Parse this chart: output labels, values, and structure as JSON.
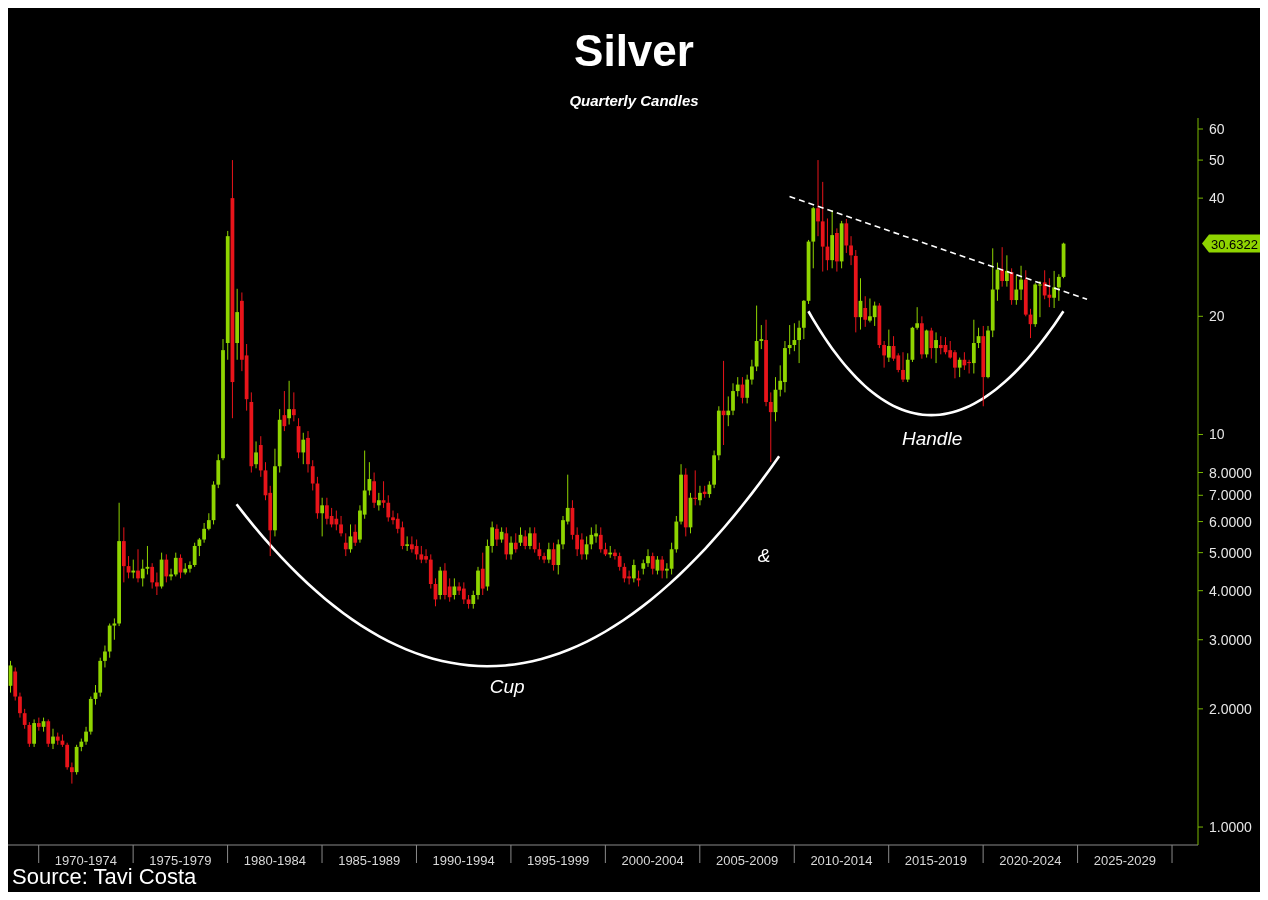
{
  "chart_data": {
    "type": "candlestick",
    "title": "Silver",
    "subtitle": "Quarterly Candles",
    "categories": [
      null,
      null,
      null,
      null,
      null,
      null,
      null,
      null,
      null,
      null,
      null,
      null,
      null,
      null,
      null,
      null,
      "1970-1974",
      null,
      null,
      null,
      null,
      null,
      null,
      null,
      null,
      null,
      null,
      null,
      null,
      null,
      null,
      null,
      null,
      null,
      null,
      null,
      "1975-1979",
      null,
      null,
      null,
      null,
      null,
      null,
      null,
      null,
      null,
      null,
      null,
      null,
      null,
      null,
      null,
      null,
      null,
      null,
      null,
      "1980-1984",
      null,
      null,
      null,
      null,
      null,
      null,
      null,
      null,
      null,
      null,
      null,
      null,
      null,
      null,
      null,
      null,
      null,
      null,
      null,
      "1985-1989",
      null,
      null,
      null,
      null,
      null,
      null,
      null,
      null,
      null,
      null,
      null,
      null,
      null,
      null,
      null,
      null,
      null,
      null,
      null,
      "1990-1994",
      null,
      null,
      null,
      null,
      null,
      null,
      null,
      null,
      null,
      null,
      null,
      null,
      null,
      null,
      null,
      null,
      null,
      null,
      null,
      "1995-1999",
      null,
      null,
      null,
      null,
      null,
      null,
      null,
      null,
      null,
      null,
      null,
      null,
      null,
      null,
      null,
      null,
      null,
      null,
      null,
      "2000-2004",
      null,
      null,
      null,
      null,
      null,
      null,
      null,
      null,
      null,
      null,
      null,
      null,
      null,
      null,
      null,
      null,
      null,
      null,
      null,
      "2005-2009",
      null,
      null,
      null,
      null,
      null,
      null,
      null,
      null,
      null,
      null,
      null,
      null,
      null,
      null,
      null,
      null,
      null,
      null,
      null,
      "2010-2014",
      null,
      null,
      null,
      null,
      null,
      null,
      null,
      null,
      null,
      null,
      null,
      null,
      null,
      null,
      null,
      null,
      null,
      null,
      null,
      "2015-2019",
      null,
      null,
      null,
      null,
      null,
      null,
      null,
      null,
      null,
      null,
      null,
      null,
      null,
      null,
      null,
      null,
      null,
      null,
      null,
      "2020-2024",
      null,
      null,
      null,
      null,
      null,
      null,
      null,
      null,
      null,
      null,
      null,
      null,
      null,
      null,
      null,
      null,
      null,
      null,
      null,
      "2025-2029",
      null,
      null,
      null,
      null,
      null,
      null,
      null,
      null,
      null,
      null,
      null,
      null,
      null,
      null,
      null
    ],
    "ohlc": [
      [
        2.29,
        2.65,
        2.2,
        2.58
      ],
      [
        2.49,
        2.55,
        2.1,
        2.15
      ],
      [
        2.15,
        2.2,
        1.9,
        1.95
      ],
      [
        1.95,
        2.0,
        1.78,
        1.82
      ],
      [
        1.82,
        1.85,
        1.6,
        1.63
      ],
      [
        1.63,
        1.88,
        1.6,
        1.84
      ],
      [
        1.84,
        1.9,
        1.76,
        1.8
      ],
      [
        1.8,
        1.9,
        1.75,
        1.86
      ],
      [
        1.86,
        1.88,
        1.6,
        1.63
      ],
      [
        1.63,
        1.78,
        1.58,
        1.7
      ],
      [
        1.7,
        1.74,
        1.62,
        1.66
      ],
      [
        1.66,
        1.72,
        1.6,
        1.62
      ],
      [
        1.62,
        1.64,
        1.4,
        1.42
      ],
      [
        1.42,
        1.46,
        1.29,
        1.38
      ],
      [
        1.38,
        1.62,
        1.36,
        1.6
      ],
      [
        1.6,
        1.68,
        1.56,
        1.65
      ],
      [
        1.65,
        1.8,
        1.62,
        1.75
      ],
      [
        1.75,
        2.15,
        1.72,
        2.12
      ],
      [
        2.12,
        2.3,
        2.05,
        2.2
      ],
      [
        2.2,
        2.7,
        2.15,
        2.65
      ],
      [
        2.65,
        2.9,
        2.55,
        2.8
      ],
      [
        2.8,
        3.3,
        2.7,
        3.26
      ],
      [
        3.26,
        3.4,
        3.0,
        3.3
      ],
      [
        3.3,
        6.7,
        3.25,
        5.35
      ],
      [
        5.35,
        5.8,
        4.2,
        4.62
      ],
      [
        4.62,
        4.9,
        4.3,
        4.45
      ],
      [
        4.45,
        4.8,
        4.3,
        4.5
      ],
      [
        4.5,
        5.1,
        4.2,
        4.3
      ],
      [
        4.3,
        4.8,
        4.1,
        4.55
      ],
      [
        4.55,
        5.2,
        4.4,
        4.6
      ],
      [
        4.6,
        4.7,
        4.05,
        4.2
      ],
      [
        4.2,
        4.45,
        3.9,
        4.1
      ],
      [
        4.1,
        5.0,
        4.05,
        4.8
      ],
      [
        4.8,
        4.95,
        4.2,
        4.35
      ],
      [
        4.35,
        4.55,
        4.25,
        4.4
      ],
      [
        4.4,
        5.0,
        4.35,
        4.85
      ],
      [
        4.85,
        4.95,
        4.3,
        4.45
      ],
      [
        4.45,
        4.7,
        4.4,
        4.55
      ],
      [
        4.55,
        4.75,
        4.45,
        4.65
      ],
      [
        4.65,
        5.3,
        4.6,
        5.2
      ],
      [
        5.2,
        5.45,
        4.9,
        5.4
      ],
      [
        5.4,
        5.95,
        5.3,
        5.75
      ],
      [
        5.75,
        6.3,
        5.7,
        6.05
      ],
      [
        6.05,
        7.6,
        5.9,
        7.45
      ],
      [
        7.45,
        8.9,
        7.3,
        8.6
      ],
      [
        8.7,
        17.5,
        8.6,
        16.4
      ],
      [
        17.1,
        33,
        15.5,
        32
      ],
      [
        40,
        50,
        11.0,
        13.6
      ],
      [
        17.1,
        23.5,
        15.5,
        20.5
      ],
      [
        21.9,
        23.0,
        14.5,
        15.5
      ],
      [
        15.9,
        17.0,
        11.5,
        12.3
      ],
      [
        12.1,
        12.8,
        8.0,
        8.3
      ],
      [
        8.4,
        9.6,
        8.2,
        9.0
      ],
      [
        9.4,
        9.9,
        7.8,
        8.1
      ],
      [
        8.1,
        8.5,
        6.8,
        7.0
      ],
      [
        7.1,
        7.4,
        4.9,
        5.7
      ],
      [
        5.7,
        9.2,
        5.5,
        8.3
      ],
      [
        8.3,
        11.6,
        8.0,
        10.9
      ],
      [
        11.2,
        12.9,
        10.2,
        10.5
      ],
      [
        11.0,
        13.7,
        10.6,
        11.6
      ],
      [
        11.6,
        12.8,
        10.8,
        11.2
      ],
      [
        10.5,
        11.0,
        8.7,
        9.0
      ],
      [
        9.0,
        10.1,
        8.4,
        9.7
      ],
      [
        9.8,
        10.2,
        8.0,
        8.4
      ],
      [
        8.3,
        8.6,
        7.2,
        7.5
      ],
      [
        7.5,
        7.8,
        6.1,
        6.3
      ],
      [
        6.3,
        6.9,
        5.5,
        6.6
      ],
      [
        6.6,
        6.9,
        5.9,
        6.1
      ],
      [
        6.2,
        6.5,
        5.8,
        5.9
      ],
      [
        6.1,
        6.4,
        5.7,
        5.9
      ],
      [
        5.9,
        6.2,
        5.5,
        5.6
      ],
      [
        5.3,
        5.6,
        4.9,
        5.1
      ],
      [
        5.1,
        5.9,
        5.0,
        5.5
      ],
      [
        5.65,
        5.9,
        5.2,
        5.3
      ],
      [
        5.4,
        6.6,
        5.3,
        6.4
      ],
      [
        6.25,
        9.1,
        6.1,
        7.2
      ],
      [
        7.2,
        8.5,
        7.0,
        7.7
      ],
      [
        7.6,
        8.0,
        6.5,
        6.7
      ],
      [
        6.6,
        7.1,
        6.4,
        6.8
      ],
      [
        6.8,
        7.6,
        6.5,
        6.7
      ],
      [
        6.7,
        7.0,
        6.0,
        6.15
      ],
      [
        6.15,
        6.4,
        5.9,
        6.05
      ],
      [
        6.1,
        6.3,
        5.6,
        5.75
      ],
      [
        5.8,
        6.0,
        5.1,
        5.2
      ],
      [
        5.2,
        5.5,
        5.05,
        5.25
      ],
      [
        5.25,
        5.5,
        5.0,
        5.1
      ],
      [
        5.2,
        5.4,
        4.8,
        4.95
      ],
      [
        4.95,
        5.2,
        4.7,
        4.8
      ],
      [
        4.9,
        5.1,
        4.7,
        4.8
      ],
      [
        4.8,
        4.95,
        4.05,
        4.16
      ],
      [
        4.16,
        4.3,
        3.65,
        3.8
      ],
      [
        3.9,
        4.6,
        3.8,
        4.5
      ],
      [
        4.5,
        4.7,
        3.8,
        3.9
      ],
      [
        4.1,
        4.3,
        3.75,
        3.85
      ],
      [
        3.9,
        4.3,
        3.8,
        4.1
      ],
      [
        4.1,
        4.2,
        3.9,
        4.0
      ],
      [
        4.05,
        4.2,
        3.7,
        3.8
      ],
      [
        3.8,
        3.9,
        3.6,
        3.7
      ],
      [
        3.7,
        4.0,
        3.6,
        3.9
      ],
      [
        3.9,
        4.6,
        3.8,
        4.5
      ],
      [
        4.55,
        5.0,
        3.9,
        4.05
      ],
      [
        4.1,
        5.4,
        4.0,
        5.2
      ],
      [
        5.2,
        6.0,
        5.0,
        5.8
      ],
      [
        5.75,
        5.9,
        5.2,
        5.4
      ],
      [
        5.4,
        5.8,
        5.3,
        5.65
      ],
      [
        5.6,
        5.8,
        4.8,
        4.95
      ],
      [
        4.95,
        5.5,
        4.8,
        5.3
      ],
      [
        5.3,
        5.6,
        5.0,
        5.1
      ],
      [
        5.3,
        5.8,
        5.2,
        5.55
      ],
      [
        5.5,
        5.7,
        5.1,
        5.2
      ],
      [
        5.2,
        5.8,
        5.1,
        5.6
      ],
      [
        5.6,
        5.8,
        5.0,
        5.1
      ],
      [
        5.1,
        5.3,
        4.8,
        4.9
      ],
      [
        4.9,
        5.0,
        4.7,
        4.8
      ],
      [
        4.8,
        5.3,
        4.7,
        5.1
      ],
      [
        5.1,
        5.3,
        4.5,
        4.65
      ],
      [
        4.65,
        5.4,
        4.4,
        5.25
      ],
      [
        5.25,
        6.2,
        5.1,
        6.05
      ],
      [
        6.0,
        7.9,
        5.9,
        6.5
      ],
      [
        6.5,
        6.8,
        5.4,
        5.55
      ],
      [
        5.55,
        5.8,
        4.9,
        5.1
      ],
      [
        5.4,
        5.6,
        4.8,
        4.95
      ],
      [
        4.95,
        5.5,
        4.8,
        5.25
      ],
      [
        5.25,
        5.8,
        5.1,
        5.55
      ],
      [
        5.5,
        5.9,
        5.3,
        5.6
      ],
      [
        5.55,
        5.8,
        5.0,
        5.1
      ],
      [
        5.1,
        5.3,
        4.9,
        4.95
      ],
      [
        4.95,
        5.2,
        4.85,
        5.0
      ],
      [
        5.0,
        5.1,
        4.8,
        4.9
      ],
      [
        4.9,
        5.0,
        4.5,
        4.6
      ],
      [
        4.6,
        4.7,
        4.2,
        4.3
      ],
      [
        4.35,
        4.5,
        4.15,
        4.3
      ],
      [
        4.3,
        4.8,
        4.2,
        4.65
      ],
      [
        4.3,
        4.5,
        4.1,
        4.25
      ],
      [
        4.55,
        4.8,
        4.4,
        4.7
      ],
      [
        4.7,
        5.1,
        4.6,
        4.9
      ],
      [
        4.9,
        5.0,
        4.4,
        4.55
      ],
      [
        4.5,
        4.9,
        4.4,
        4.8
      ],
      [
        4.8,
        4.9,
        4.3,
        4.5
      ],
      [
        4.5,
        4.7,
        4.3,
        4.55
      ],
      [
        4.55,
        5.3,
        4.4,
        5.1
      ],
      [
        5.1,
        6.2,
        5.0,
        6.0
      ],
      [
        6.0,
        8.4,
        5.9,
        7.9
      ],
      [
        7.9,
        8.2,
        5.5,
        5.8
      ],
      [
        5.8,
        7.1,
        5.6,
        6.9
      ],
      [
        6.9,
        8.1,
        6.6,
        6.85
      ],
      [
        6.8,
        7.4,
        6.6,
        7.1
      ],
      [
        7.15,
        7.4,
        6.9,
        7.05
      ],
      [
        7.05,
        7.6,
        6.9,
        7.45
      ],
      [
        7.45,
        9.1,
        7.3,
        8.85
      ],
      [
        8.85,
        11.8,
        8.6,
        11.5
      ],
      [
        11.5,
        15.4,
        9.4,
        11.2
      ],
      [
        11.2,
        12.5,
        10.5,
        11.5
      ],
      [
        11.5,
        13.5,
        11.2,
        12.9
      ],
      [
        12.9,
        14.0,
        12.5,
        13.4
      ],
      [
        13.4,
        14.0,
        12.0,
        12.4
      ],
      [
        12.4,
        14.2,
        12.0,
        13.8
      ],
      [
        13.8,
        15.5,
        13.4,
        14.9
      ],
      [
        14.9,
        21.3,
        14.5,
        17.3
      ],
      [
        17.3,
        19.0,
        16.5,
        17.5
      ],
      [
        17.4,
        19.6,
        11.8,
        12.1
      ],
      [
        12.1,
        12.8,
        8.5,
        11.4
      ],
      [
        11.4,
        14.0,
        10.8,
        13.0
      ],
      [
        13.0,
        15.0,
        12.5,
        13.7
      ],
      [
        13.6,
        17.3,
        12.8,
        16.6
      ],
      [
        16.6,
        19.0,
        16.0,
        16.9
      ],
      [
        16.9,
        19.2,
        16.3,
        17.4
      ],
      [
        17.4,
        19.5,
        15.2,
        18.7
      ],
      [
        18.7,
        22.0,
        17.5,
        21.9
      ],
      [
        21.9,
        31.3,
        21.5,
        31.0
      ],
      [
        31.0,
        38.0,
        26.5,
        37.7
      ],
      [
        37.7,
        50.0,
        32.0,
        34.9
      ],
      [
        34.9,
        44.0,
        26.0,
        30.1
      ],
      [
        30.1,
        35.5,
        26.2,
        27.8
      ],
      [
        27.8,
        37.3,
        26.5,
        32.2
      ],
      [
        32.6,
        33.5,
        26.0,
        27.6
      ],
      [
        27.6,
        35.0,
        26.5,
        34.5
      ],
      [
        34.5,
        35.4,
        29.0,
        30.3
      ],
      [
        30.3,
        32.0,
        27.0,
        28.6
      ],
      [
        28.5,
        29.5,
        18.2,
        19.9
      ],
      [
        19.9,
        25.0,
        18.5,
        21.9
      ],
      [
        21.0,
        22.5,
        18.8,
        19.6
      ],
      [
        19.5,
        22.2,
        19.3,
        20.0
      ],
      [
        19.9,
        21.8,
        18.9,
        21.3
      ],
      [
        21.3,
        21.6,
        16.6,
        16.9
      ],
      [
        16.9,
        17.3,
        14.8,
        15.9
      ],
      [
        15.7,
        18.5,
        15.3,
        16.8
      ],
      [
        16.8,
        17.8,
        15.4,
        15.6
      ],
      [
        15.9,
        16.1,
        14.4,
        14.6
      ],
      [
        14.6,
        16.2,
        13.6,
        13.8
      ],
      [
        13.8,
        16.1,
        13.6,
        15.5
      ],
      [
        15.5,
        18.8,
        15.3,
        18.7
      ],
      [
        18.7,
        21.1,
        18.5,
        19.2
      ],
      [
        19.2,
        20.0,
        15.6,
        16.0
      ],
      [
        16.0,
        18.5,
        15.7,
        18.4
      ],
      [
        18.4,
        18.7,
        15.6,
        16.6
      ],
      [
        16.6,
        18.2,
        15.2,
        17.4
      ],
      [
        16.9,
        17.8,
        16.0,
        16.6
      ],
      [
        16.9,
        17.7,
        16.0,
        16.2
      ],
      [
        16.4,
        17.3,
        15.6,
        15.7
      ],
      [
        16.2,
        16.4,
        13.9,
        14.8
      ],
      [
        14.8,
        15.7,
        14.0,
        15.5
      ],
      [
        15.5,
        16.2,
        14.6,
        15.0
      ],
      [
        15.3,
        15.5,
        14.3,
        15.2
      ],
      [
        15.2,
        19.6,
        14.3,
        17.1
      ],
      [
        17.1,
        18.7,
        16.6,
        17.8
      ],
      [
        17.8,
        18.9,
        11.8,
        14.0
      ],
      [
        14.0,
        18.9,
        13.9,
        18.4
      ],
      [
        18.4,
        29.8,
        17.7,
        23.4
      ],
      [
        23.4,
        27.4,
        21.9,
        26.3
      ],
      [
        26.3,
        30.0,
        23.8,
        24.6
      ],
      [
        24.6,
        28.6,
        23.8,
        26.1
      ],
      [
        25.9,
        26.5,
        21.4,
        22.0
      ],
      [
        22.0,
        25.4,
        21.4,
        23.4
      ],
      [
        23.4,
        26.9,
        22.0,
        24.8
      ],
      [
        24.8,
        26.2,
        20.0,
        20.2
      ],
      [
        20.2,
        20.9,
        17.6,
        19.1
      ],
      [
        19.1,
        24.3,
        18.8,
        24.1
      ],
      [
        24.0,
        24.6,
        19.9,
        24.1
      ],
      [
        24.4,
        26.2,
        22.1,
        22.6
      ],
      [
        22.7,
        25.0,
        21.1,
        22.3
      ],
      [
        22.3,
        26.1,
        21.0,
        23.7
      ],
      [
        23.7,
        25.6,
        21.9,
        25.2
      ],
      [
        25.2,
        30.8,
        25.0,
        30.6322
      ],
      null,
      null,
      null,
      null,
      null,
      null,
      null,
      null,
      null,
      null,
      null,
      null,
      null,
      null,
      null,
      null,
      null,
      null,
      null,
      null,
      null,
      null,
      null,
      null,
      null,
      null,
      null,
      null
    ],
    "series": [
      {
        "type": "line",
        "color": "#ffffff",
        "line_style": "dashed",
        "values": [
          null,
          null,
          null,
          null,
          null,
          null,
          null,
          null,
          null,
          null,
          null,
          null,
          null,
          null,
          null,
          null,
          null,
          null,
          null,
          null,
          null,
          null,
          null,
          null,
          null,
          null,
          null,
          null,
          null,
          null,
          null,
          null,
          null,
          null,
          null,
          null,
          null,
          null,
          null,
          null,
          null,
          null,
          null,
          null,
          null,
          null,
          null,
          null,
          null,
          null,
          null,
          null,
          null,
          null,
          null,
          null,
          null,
          null,
          null,
          null,
          null,
          null,
          null,
          null,
          null,
          null,
          null,
          null,
          null,
          null,
          null,
          null,
          null,
          null,
          null,
          null,
          null,
          null,
          null,
          null,
          null,
          null,
          null,
          null,
          null,
          null,
          null,
          null,
          null,
          null,
          null,
          null,
          null,
          null,
          null,
          null,
          null,
          null,
          null,
          null,
          null,
          null,
          null,
          null,
          null,
          null,
          null,
          null,
          null,
          null,
          null,
          null,
          null,
          null,
          null,
          null,
          null,
          null,
          null,
          null,
          null,
          null,
          null,
          null,
          null,
          null,
          null,
          null,
          null,
          null,
          null,
          null,
          null,
          null,
          null,
          null,
          null,
          null,
          null,
          null,
          null,
          null,
          null,
          null,
          null,
          null,
          null,
          null,
          null,
          null,
          null,
          null,
          null,
          null,
          null,
          null,
          null,
          null,
          null,
          null,
          null,
          null,
          null,
          null,
          null,
          40.4,
          null,
          null,
          null,
          null,
          null,
          null,
          null,
          null,
          null,
          null,
          null,
          null,
          null,
          null,
          null,
          null,
          null,
          null,
          null,
          null,
          null,
          null,
          null,
          null,
          null,
          null,
          null,
          null,
          null,
          null,
          null,
          null,
          null,
          null,
          null,
          null,
          null,
          null,
          null,
          null,
          null,
          null,
          null,
          null,
          null,
          null,
          null,
          null,
          null,
          null,
          null,
          null,
          null,
          null,
          null,
          null,
          null,
          null,
          null,
          null,
          null,
          null,
          22.1,
          null,
          null,
          null,
          null,
          null,
          null,
          null,
          null,
          null,
          null,
          null,
          null,
          null,
          null,
          null,
          null,
          null,
          null,
          null,
          null,
          null,
          null,
          null
        ]
      }
    ],
    "log": true,
    "ylim": [
      0.9,
      64
    ],
    "yticks": [
      {
        "value": 1,
        "label": "1.0000"
      },
      {
        "value": 2,
        "label": "2.0000"
      },
      {
        "value": 3,
        "label": "3.0000"
      },
      {
        "value": 4,
        "label": "4.0000"
      },
      {
        "value": 5,
        "label": "5.0000"
      },
      {
        "value": 6,
        "label": "6.0000"
      },
      {
        "value": 7,
        "label": "7.0000"
      },
      {
        "value": 8,
        "label": "8.0000"
      },
      10,
      20,
      40,
      50,
      60
    ],
    "annotations": [
      "Cup",
      "&",
      "Handle",
      "30.6322",
      "Source: Tavi Costa"
    ]
  }
}
